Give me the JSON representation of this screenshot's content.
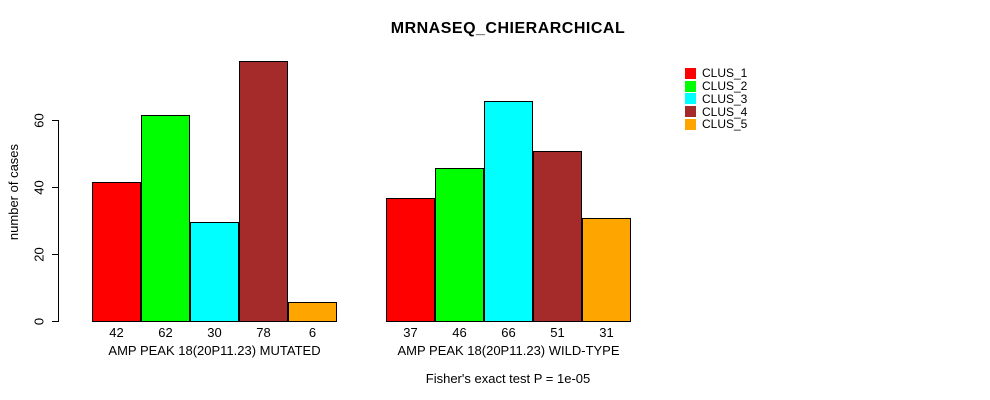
{
  "chart_data": {
    "type": "bar",
    "title": "MRNASEQ_CHIERARCHICAL",
    "ylabel": "number of cases",
    "footnote": "Fisher's exact test P = 1e-05",
    "ylim": [
      0,
      80
    ],
    "yticks": [
      0,
      20,
      40,
      60
    ],
    "grid": false,
    "legend_position": "right",
    "categories": [
      "AMP PEAK 18(20P11.23) MUTATED",
      "AMP PEAK 18(20P11.23) WILD-TYPE"
    ],
    "series": [
      {
        "name": "CLUS_1",
        "color": "#ff0000",
        "values": [
          42,
          37
        ]
      },
      {
        "name": "CLUS_2",
        "color": "#00ff00",
        "values": [
          62,
          46
        ]
      },
      {
        "name": "CLUS_3",
        "color": "#00ffff",
        "values": [
          30,
          66
        ]
      },
      {
        "name": "CLUS_4",
        "color": "#a52a2a",
        "values": [
          78,
          51
        ]
      },
      {
        "name": "CLUS_5",
        "color": "#ffa500",
        "values": [
          6,
          31
        ]
      }
    ],
    "bar_border_color": "#000000",
    "text_color": "#000000",
    "background_color": "#ffffff"
  }
}
